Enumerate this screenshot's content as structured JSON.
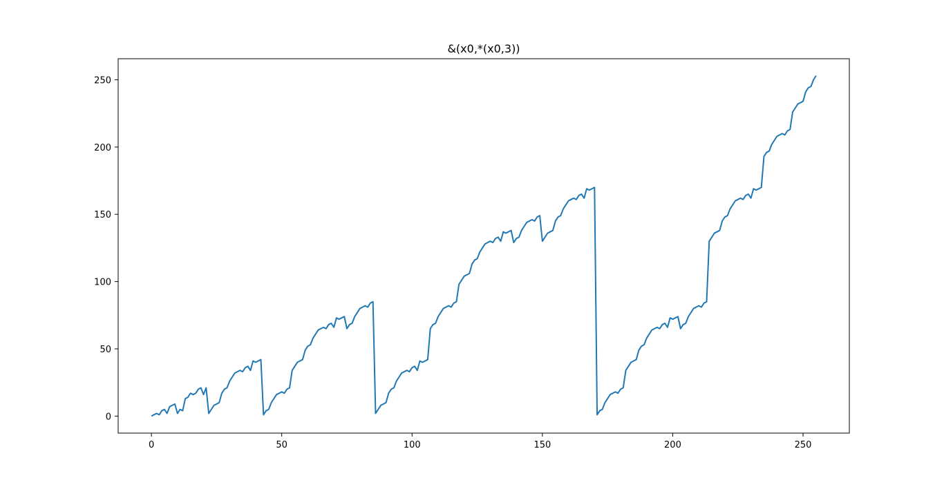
{
  "chart_data": {
    "type": "line",
    "title": "&(x0,*(x0,3))",
    "xlabel": "",
    "ylabel": "",
    "xlim": [
      -12.75,
      267.75
    ],
    "ylim": [
      -12.65,
      265.65
    ],
    "xticks": [
      0,
      50,
      100,
      150,
      200,
      250
    ],
    "yticks": [
      0,
      50,
      100,
      150,
      200,
      250
    ],
    "grid": false,
    "legend": "none",
    "line_color": "#1f77b4",
    "x_start": 0,
    "x_step": 1,
    "series": [
      {
        "values": [
          0,
          1,
          2,
          1,
          4,
          5,
          2,
          7,
          8,
          9,
          2,
          5,
          4,
          13,
          14,
          17,
          16,
          17,
          20,
          21,
          16,
          21,
          2,
          5,
          8,
          9,
          10,
          17,
          20,
          21,
          26,
          29,
          32,
          33,
          34,
          33,
          36,
          37,
          34,
          41,
          40,
          41,
          42,
          1,
          4,
          5,
          10,
          13,
          16,
          17,
          18,
          17,
          20,
          21,
          34,
          37,
          40,
          41,
          42,
          49,
          52,
          53,
          58,
          61,
          64,
          65,
          66,
          65,
          68,
          69,
          66,
          73,
          72,
          73,
          74,
          65,
          68,
          69,
          74,
          77,
          80,
          81,
          82,
          81,
          84,
          85,
          2,
          5,
          8,
          9,
          10,
          17,
          20,
          21,
          26,
          29,
          32,
          33,
          34,
          33,
          36,
          37,
          34,
          41,
          40,
          41,
          42,
          65,
          68,
          69,
          74,
          77,
          80,
          81,
          82,
          81,
          84,
          85,
          98,
          101,
          104,
          105,
          106,
          113,
          116,
          117,
          122,
          125,
          128,
          129,
          130,
          129,
          132,
          133,
          130,
          137,
          136,
          137,
          138,
          129,
          132,
          133,
          138,
          141,
          144,
          145,
          146,
          145,
          148,
          149,
          130,
          133,
          136,
          137,
          138,
          145,
          148,
          149,
          154,
          157,
          160,
          161,
          162,
          161,
          164,
          165,
          162,
          169,
          168,
          169,
          170,
          1,
          4,
          5,
          10,
          13,
          16,
          17,
          18,
          17,
          20,
          21,
          34,
          37,
          40,
          41,
          42,
          49,
          52,
          53,
          58,
          61,
          64,
          65,
          66,
          65,
          68,
          69,
          66,
          73,
          72,
          73,
          74,
          65,
          68,
          69,
          74,
          77,
          80,
          81,
          82,
          81,
          84,
          85,
          130,
          133,
          136,
          137,
          138,
          145,
          148,
          149,
          154,
          157,
          160,
          161,
          162,
          161,
          164,
          165,
          162,
          169,
          168,
          169,
          170,
          193,
          196,
          197,
          202,
          205,
          208,
          209,
          210,
          209,
          212,
          213,
          226,
          229,
          232,
          233,
          234,
          241,
          244,
          245,
          250,
          253
        ]
      }
    ]
  }
}
